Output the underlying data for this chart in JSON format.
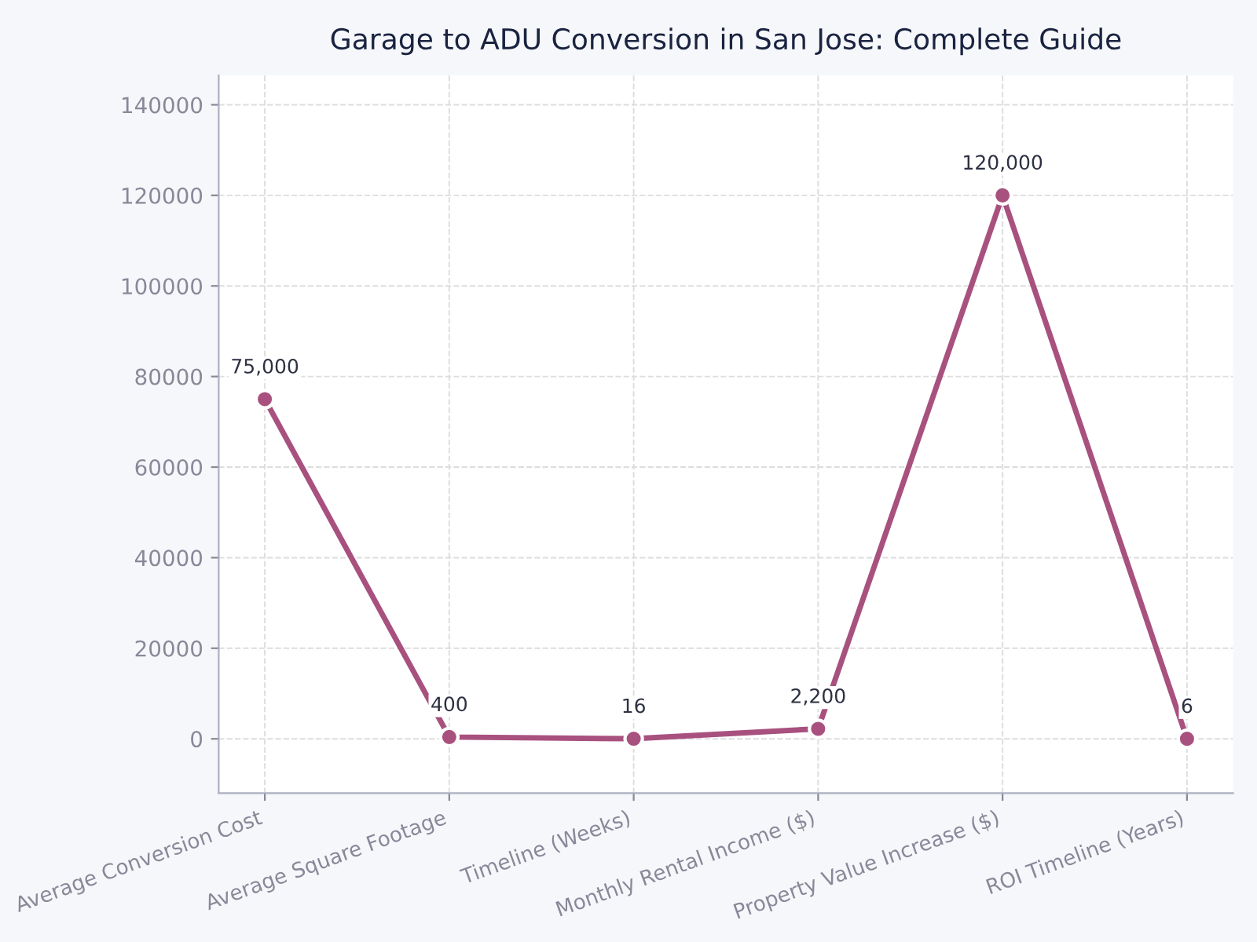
{
  "chart_data": {
    "type": "line",
    "title": "Garage to ADU Conversion in San Jose: Complete Guide",
    "categories": [
      "Average Conversion Cost",
      "Average Square Footage",
      "Timeline (Weeks)",
      "Monthly Rental Income ($)",
      "Property Value Increase ($)",
      "ROI Timeline (Years)"
    ],
    "series": [
      {
        "color": "#a8517f",
        "values": [
          75000,
          400,
          16,
          2200,
          120000,
          6
        ],
        "value_labels": [
          "75,000",
          "400",
          "16",
          "2,200",
          "120,000",
          "6"
        ]
      }
    ],
    "ylim": [
      -12000,
      146500
    ],
    "yticks": [
      0,
      20000,
      40000,
      60000,
      80000,
      100000,
      120000,
      140000
    ],
    "grid": true,
    "marker": "circle",
    "line_style": "solid"
  }
}
